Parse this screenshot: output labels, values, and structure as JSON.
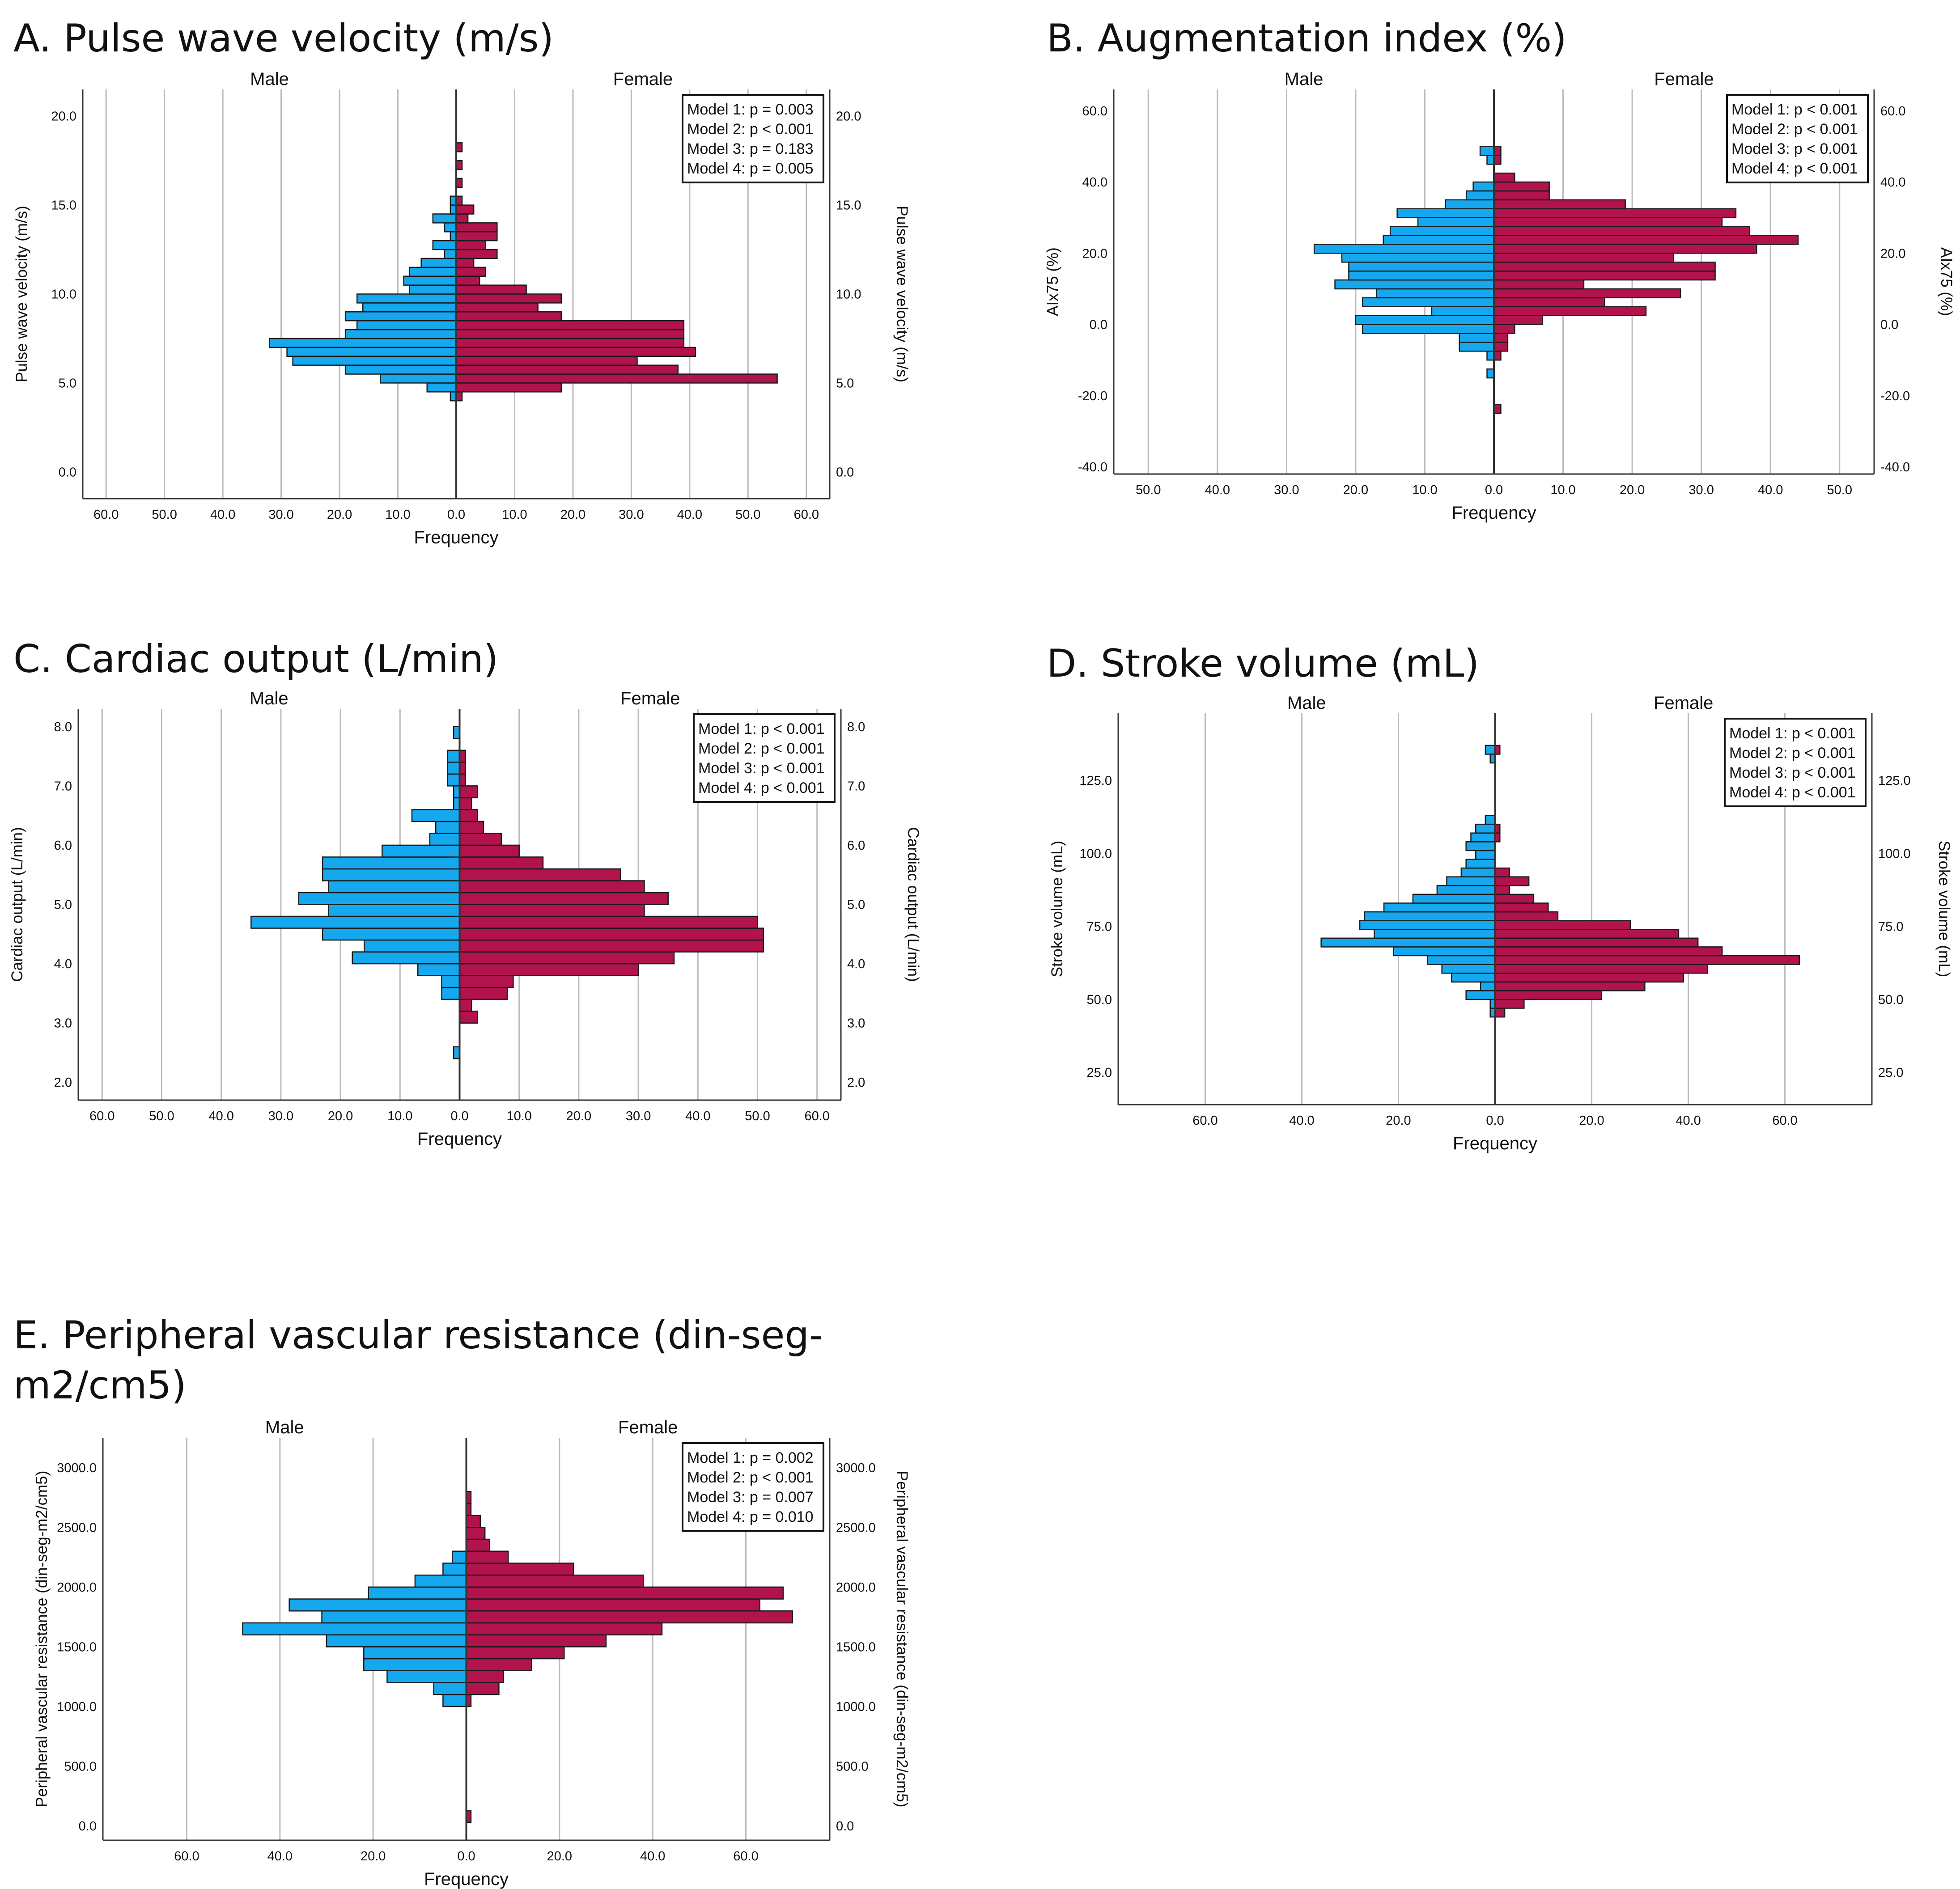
{
  "figure": {
    "colors": {
      "male": "#16A8EE",
      "female": "#B2134D",
      "grid": "#BBBBBB",
      "axis": "#333333"
    }
  },
  "chart_data": [
    {
      "id": "A",
      "type": "bar",
      "panel_title": "A. Pulse wave velocity (m/s)",
      "title": "Pulse wave velocity (m/s)",
      "xlabel": "Frequency",
      "ylabel": "Pulse wave velocity (m/s)",
      "left_group": "Male",
      "right_group": "Female",
      "xmax": 64,
      "xticks": [
        0,
        10,
        20,
        30,
        40,
        50,
        60
      ],
      "ylim": [
        -1.5,
        21.5
      ],
      "yticks": [
        0,
        5,
        10,
        15,
        20
      ],
      "y_decimals": 1,
      "bin_width": 0.5,
      "legend_position": "top-right",
      "models": [
        "Model 1: p = 0.003",
        "Model 2: p < 0.001",
        "Model 3: p = 0.183",
        "Model 4: p = 0.005"
      ],
      "series": [
        {
          "name": "Male",
          "bins": [
            [
              4,
              1
            ],
            [
              4.5,
              5
            ],
            [
              5,
              13
            ],
            [
              5.5,
              19
            ],
            [
              6,
              28
            ],
            [
              6.5,
              29
            ],
            [
              7,
              32
            ],
            [
              7.5,
              19
            ],
            [
              8,
              17
            ],
            [
              8.5,
              19
            ],
            [
              9,
              16
            ],
            [
              9.5,
              17
            ],
            [
              10,
              8
            ],
            [
              10.5,
              9
            ],
            [
              11,
              8
            ],
            [
              11.5,
              6
            ],
            [
              12,
              2
            ],
            [
              12.5,
              4
            ],
            [
              13,
              1
            ],
            [
              13.5,
              2
            ],
            [
              14,
              4
            ],
            [
              14.5,
              1
            ],
            [
              15,
              1
            ]
          ]
        },
        {
          "name": "Female",
          "bins": [
            [
              4,
              1
            ],
            [
              4.5,
              18
            ],
            [
              5,
              55
            ],
            [
              5.5,
              38
            ],
            [
              6,
              31
            ],
            [
              6.5,
              41
            ],
            [
              7,
              39
            ],
            [
              7.5,
              39
            ],
            [
              8,
              39
            ],
            [
              8.5,
              18
            ],
            [
              9,
              14
            ],
            [
              9.5,
              18
            ],
            [
              10,
              12
            ],
            [
              10.5,
              4
            ],
            [
              11,
              5
            ],
            [
              11.5,
              3
            ],
            [
              12,
              7
            ],
            [
              12.5,
              5
            ],
            [
              13,
              7
            ],
            [
              13.5,
              7
            ],
            [
              14,
              2
            ],
            [
              14.5,
              3
            ],
            [
              15,
              1
            ],
            [
              16,
              1
            ],
            [
              17,
              1
            ],
            [
              18,
              1
            ]
          ]
        }
      ]
    },
    {
      "id": "B",
      "type": "bar",
      "panel_title": "B. Augmentation index (%)",
      "title": "Augmentation index (%)",
      "xlabel": "Frequency",
      "ylabel": "AIx75 (%)",
      "left_group": "Male",
      "right_group": "Female",
      "xmax": 55,
      "xticks": [
        0,
        10,
        20,
        30,
        40,
        50
      ],
      "ylim": [
        -42,
        66
      ],
      "yticks": [
        -40,
        -20,
        0,
        20,
        40,
        60
      ],
      "y_decimals": 1,
      "bin_width": 2.5,
      "legend_position": "top-right",
      "models": [
        "Model 1: p < 0.001",
        "Model 2: p < 0.001",
        "Model 3: p < 0.001",
        "Model 4: p < 0.001"
      ],
      "series": [
        {
          "name": "Male",
          "bins": [
            [
              -15,
              1
            ],
            [
              -10,
              1
            ],
            [
              -7.5,
              5
            ],
            [
              -5,
              5
            ],
            [
              -2.5,
              19
            ],
            [
              0,
              20
            ],
            [
              2.5,
              9
            ],
            [
              5,
              19
            ],
            [
              7.5,
              17
            ],
            [
              10,
              23
            ],
            [
              12.5,
              21
            ],
            [
              15,
              21
            ],
            [
              17.5,
              22
            ],
            [
              20,
              26
            ],
            [
              22.5,
              16
            ],
            [
              25,
              15
            ],
            [
              27.5,
              11
            ],
            [
              30,
              14
            ],
            [
              32.5,
              7
            ],
            [
              35,
              4
            ],
            [
              37.5,
              3
            ],
            [
              45,
              1
            ],
            [
              47.5,
              2
            ]
          ]
        },
        {
          "name": "Female",
          "bins": [
            [
              -25,
              1
            ],
            [
              -10,
              1
            ],
            [
              -7.5,
              2
            ],
            [
              -5,
              2
            ],
            [
              -2.5,
              3
            ],
            [
              0,
              7
            ],
            [
              2.5,
              22
            ],
            [
              5,
              16
            ],
            [
              7.5,
              27
            ],
            [
              10,
              13
            ],
            [
              12.5,
              32
            ],
            [
              15,
              32
            ],
            [
              17.5,
              26
            ],
            [
              20,
              38
            ],
            [
              22.5,
              44
            ],
            [
              25,
              37
            ],
            [
              27.5,
              33
            ],
            [
              30,
              35
            ],
            [
              32.5,
              19
            ],
            [
              35,
              8
            ],
            [
              37.5,
              8
            ],
            [
              40,
              3
            ],
            [
              45,
              1
            ],
            [
              47.5,
              1
            ]
          ]
        }
      ]
    },
    {
      "id": "C",
      "type": "bar",
      "panel_title": "C. Cardiac output (L/min)",
      "title": "Cardiac output (L/min)",
      "xlabel": "Frequency",
      "ylabel": "Cardiac output (L/min)",
      "left_group": "Male",
      "right_group": "Female",
      "xmax": 64,
      "xticks": [
        0,
        10,
        20,
        30,
        40,
        50,
        60
      ],
      "ylim": [
        1.7,
        8.3
      ],
      "yticks": [
        2,
        3,
        4,
        5,
        6,
        7,
        8
      ],
      "y_decimals": 1,
      "bin_width": 0.2,
      "legend_position": "top-right",
      "models": [
        "Model 1: p < 0.001",
        "Model 2: p < 0.001",
        "Model 3: p < 0.001",
        "Model 4: p < 0.001"
      ],
      "series": [
        {
          "name": "Male",
          "bins": [
            [
              2.4,
              1
            ],
            [
              3.4,
              3
            ],
            [
              3.6,
              3
            ],
            [
              3.8,
              7
            ],
            [
              4,
              18
            ],
            [
              4.2,
              16
            ],
            [
              4.4,
              23
            ],
            [
              4.6,
              35
            ],
            [
              4.8,
              22
            ],
            [
              5,
              27
            ],
            [
              5.2,
              22
            ],
            [
              5.4,
              23
            ],
            [
              5.6,
              23
            ],
            [
              5.8,
              13
            ],
            [
              6,
              5
            ],
            [
              6.2,
              4
            ],
            [
              6.4,
              8
            ],
            [
              6.6,
              1
            ],
            [
              6.8,
              1
            ],
            [
              7,
              2
            ],
            [
              7.2,
              2
            ],
            [
              7.4,
              2
            ],
            [
              7.8,
              1
            ]
          ]
        },
        {
          "name": "Female",
          "bins": [
            [
              3,
              3
            ],
            [
              3.2,
              2
            ],
            [
              3.4,
              8
            ],
            [
              3.6,
              9
            ],
            [
              3.8,
              30
            ],
            [
              4,
              36
            ],
            [
              4.2,
              51
            ],
            [
              4.4,
              51
            ],
            [
              4.6,
              50
            ],
            [
              4.8,
              31
            ],
            [
              5,
              35
            ],
            [
              5.2,
              31
            ],
            [
              5.4,
              27
            ],
            [
              5.6,
              14
            ],
            [
              5.8,
              10
            ],
            [
              6,
              7
            ],
            [
              6.2,
              4
            ],
            [
              6.4,
              3
            ],
            [
              6.6,
              2
            ],
            [
              6.8,
              3
            ],
            [
              7,
              1
            ],
            [
              7.2,
              1
            ],
            [
              7.4,
              1
            ]
          ]
        }
      ]
    },
    {
      "id": "D",
      "type": "bar",
      "panel_title": "D. Stroke volume (mL)",
      "title": "Stroke volume (mL)",
      "xlabel": "Frequency",
      "ylabel": "Stroke volume (mL)",
      "left_group": "Male",
      "right_group": "Female",
      "xmax": 78,
      "xticks": [
        0,
        20,
        40,
        60
      ],
      "ylim": [
        14,
        148
      ],
      "yticks": [
        25,
        50,
        75,
        100,
        125
      ],
      "y_decimals": 1,
      "bin_width": 3,
      "legend_position": "top-right",
      "models": [
        "Model 1: p < 0.001",
        "Model 2: p < 0.001",
        "Model 3: p < 0.001",
        "Model 4: p < 0.001"
      ],
      "series": [
        {
          "name": "Male",
          "bins": [
            [
              44,
              1
            ],
            [
              47,
              1
            ],
            [
              50,
              6
            ],
            [
              53,
              3
            ],
            [
              56,
              9
            ],
            [
              59,
              11
            ],
            [
              62,
              14
            ],
            [
              65,
              21
            ],
            [
              68,
              36
            ],
            [
              71,
              25
            ],
            [
              74,
              28
            ],
            [
              77,
              27
            ],
            [
              80,
              23
            ],
            [
              83,
              17
            ],
            [
              86,
              12
            ],
            [
              89,
              10
            ],
            [
              92,
              7
            ],
            [
              95,
              6
            ],
            [
              98,
              4
            ],
            [
              101,
              6
            ],
            [
              104,
              5
            ],
            [
              107,
              4
            ],
            [
              110,
              2
            ],
            [
              131,
              1
            ],
            [
              134,
              2
            ]
          ]
        },
        {
          "name": "Female",
          "bins": [
            [
              44,
              2
            ],
            [
              47,
              6
            ],
            [
              50,
              22
            ],
            [
              53,
              31
            ],
            [
              56,
              39
            ],
            [
              59,
              44
            ],
            [
              62,
              63
            ],
            [
              65,
              47
            ],
            [
              68,
              42
            ],
            [
              71,
              38
            ],
            [
              74,
              28
            ],
            [
              77,
              13
            ],
            [
              80,
              11
            ],
            [
              83,
              8
            ],
            [
              86,
              3
            ],
            [
              89,
              7
            ],
            [
              92,
              3
            ],
            [
              104,
              1
            ],
            [
              107,
              1
            ],
            [
              134,
              1
            ]
          ]
        }
      ]
    },
    {
      "id": "E",
      "type": "bar",
      "panel_title": "E. Peripheral vascular resistance (din-seg-m2/cm5)",
      "title": "Peripheral vascular resistance (din-seg-m2/cm5)",
      "xlabel": "Frequency",
      "ylabel": "Peripheral vascular resistance (din-seg-m2/cm5)",
      "left_group": "Male",
      "right_group": "Female",
      "xmax": 78,
      "xticks": [
        0,
        20,
        40,
        60
      ],
      "ylim": [
        -120,
        3250
      ],
      "yticks": [
        0,
        500,
        1000,
        1500,
        2000,
        2500,
        3000
      ],
      "y_decimals": 1,
      "bin_width": 100,
      "legend_position": "top-right",
      "models": [
        "Model 1: p = 0.002",
        "Model 2: p < 0.001",
        "Model 3: p = 0.007",
        "Model 4: p = 0.010"
      ],
      "series": [
        {
          "name": "Male",
          "bins": [
            [
              1000,
              5
            ],
            [
              1100,
              7
            ],
            [
              1200,
              17
            ],
            [
              1300,
              22
            ],
            [
              1400,
              22
            ],
            [
              1500,
              30
            ],
            [
              1600,
              48
            ],
            [
              1700,
              31
            ],
            [
              1800,
              38
            ],
            [
              1900,
              21
            ],
            [
              2000,
              11
            ],
            [
              2100,
              5
            ],
            [
              2200,
              3
            ]
          ]
        },
        {
          "name": "Female",
          "bins": [
            [
              30,
              1
            ],
            [
              1000,
              1
            ],
            [
              1100,
              7
            ],
            [
              1200,
              8
            ],
            [
              1300,
              14
            ],
            [
              1400,
              21
            ],
            [
              1500,
              30
            ],
            [
              1600,
              42
            ],
            [
              1700,
              70
            ],
            [
              1800,
              63
            ],
            [
              1900,
              68
            ],
            [
              2000,
              38
            ],
            [
              2100,
              23
            ],
            [
              2200,
              9
            ],
            [
              2300,
              5
            ],
            [
              2400,
              4
            ],
            [
              2500,
              3
            ],
            [
              2600,
              1
            ],
            [
              2700,
              1
            ]
          ]
        }
      ]
    }
  ]
}
